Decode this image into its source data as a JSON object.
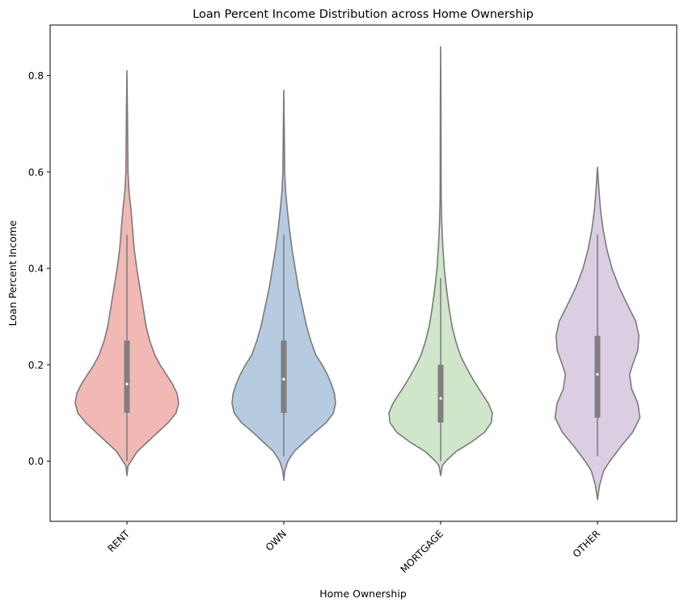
{
  "chart_data": {
    "type": "violin",
    "title": "Loan Percent Income Distribution across Home Ownership",
    "xlabel": "Home Ownership",
    "ylabel": "Loan Percent Income",
    "ylim": [
      -0.125,
      0.905
    ],
    "y_ticks": [
      0.0,
      0.2,
      0.4,
      0.6,
      0.8
    ],
    "y_tick_labels": [
      "0.0",
      "0.2",
      "0.4",
      "0.6",
      "0.8"
    ],
    "grid": false,
    "x_tick_rotation_deg": 45,
    "categories": [
      "RENT",
      "OWN",
      "MORTGAGE",
      "OTHER"
    ],
    "colors": {
      "RENT": "#f2b8b4",
      "OWN": "#b6cbe0",
      "MORTGAGE": "#d0e6cb",
      "OTHER": "#dbcee2",
      "outline": "#7a7a7a",
      "box": "#7f7f7f",
      "median": "#ffffff"
    },
    "violins": [
      {
        "category": "RENT",
        "min": -0.03,
        "max": 0.81,
        "q1": 0.1,
        "median": 0.16,
        "q3": 0.25,
        "whisker_low": 0.0,
        "whisker_high": 0.47,
        "density": [
          [
            -0.03,
            0.0
          ],
          [
            -0.01,
            0.02
          ],
          [
            0.0,
            0.08
          ],
          [
            0.02,
            0.2
          ],
          [
            0.04,
            0.4
          ],
          [
            0.06,
            0.6
          ],
          [
            0.08,
            0.8
          ],
          [
            0.1,
            0.95
          ],
          [
            0.12,
            1.0
          ],
          [
            0.14,
            0.97
          ],
          [
            0.16,
            0.88
          ],
          [
            0.18,
            0.76
          ],
          [
            0.2,
            0.64
          ],
          [
            0.22,
            0.54
          ],
          [
            0.25,
            0.44
          ],
          [
            0.28,
            0.37
          ],
          [
            0.32,
            0.31
          ],
          [
            0.36,
            0.25
          ],
          [
            0.4,
            0.19
          ],
          [
            0.44,
            0.14
          ],
          [
            0.48,
            0.11
          ],
          [
            0.52,
            0.08
          ],
          [
            0.56,
            0.04
          ],
          [
            0.6,
            0.02
          ],
          [
            0.7,
            0.012
          ],
          [
            0.81,
            0.0
          ]
        ]
      },
      {
        "category": "OWN",
        "min": -0.04,
        "max": 0.77,
        "q1": 0.1,
        "median": 0.17,
        "q3": 0.25,
        "whisker_low": 0.01,
        "whisker_high": 0.47,
        "density": [
          [
            -0.04,
            0.0
          ],
          [
            -0.02,
            0.02
          ],
          [
            0.0,
            0.08
          ],
          [
            0.02,
            0.2
          ],
          [
            0.04,
            0.4
          ],
          [
            0.06,
            0.6
          ],
          [
            0.08,
            0.82
          ],
          [
            0.1,
            0.96
          ],
          [
            0.12,
            1.0
          ],
          [
            0.14,
            0.98
          ],
          [
            0.16,
            0.92
          ],
          [
            0.18,
            0.84
          ],
          [
            0.2,
            0.74
          ],
          [
            0.22,
            0.62
          ],
          [
            0.25,
            0.52
          ],
          [
            0.28,
            0.44
          ],
          [
            0.32,
            0.36
          ],
          [
            0.36,
            0.28
          ],
          [
            0.4,
            0.22
          ],
          [
            0.44,
            0.16
          ],
          [
            0.48,
            0.11
          ],
          [
            0.52,
            0.07
          ],
          [
            0.56,
            0.035
          ],
          [
            0.6,
            0.018
          ],
          [
            0.68,
            0.01
          ],
          [
            0.77,
            0.0
          ]
        ]
      },
      {
        "category": "MORTGAGE",
        "min": -0.03,
        "max": 0.86,
        "q1": 0.08,
        "median": 0.13,
        "q3": 0.2,
        "whisker_low": 0.0,
        "whisker_high": 0.38,
        "density": [
          [
            -0.03,
            0.0
          ],
          [
            -0.01,
            0.03
          ],
          [
            0.0,
            0.1
          ],
          [
            0.02,
            0.3
          ],
          [
            0.04,
            0.6
          ],
          [
            0.06,
            0.85
          ],
          [
            0.08,
            0.98
          ],
          [
            0.1,
            1.0
          ],
          [
            0.12,
            0.92
          ],
          [
            0.14,
            0.8
          ],
          [
            0.16,
            0.68
          ],
          [
            0.18,
            0.57
          ],
          [
            0.2,
            0.47
          ],
          [
            0.22,
            0.38
          ],
          [
            0.25,
            0.29
          ],
          [
            0.28,
            0.22
          ],
          [
            0.32,
            0.16
          ],
          [
            0.36,
            0.11
          ],
          [
            0.4,
            0.07
          ],
          [
            0.45,
            0.04
          ],
          [
            0.5,
            0.02
          ],
          [
            0.55,
            0.01
          ],
          [
            0.65,
            0.008
          ],
          [
            0.75,
            0.006
          ],
          [
            0.86,
            0.0
          ]
        ]
      },
      {
        "category": "OTHER",
        "min": -0.08,
        "max": 0.61,
        "q1": 0.09,
        "median": 0.18,
        "q3": 0.26,
        "whisker_low": 0.01,
        "whisker_high": 0.47,
        "density": [
          [
            -0.08,
            0.0
          ],
          [
            -0.05,
            0.04
          ],
          [
            -0.02,
            0.12
          ],
          [
            0.0,
            0.24
          ],
          [
            0.03,
            0.45
          ],
          [
            0.06,
            0.68
          ],
          [
            0.09,
            0.82
          ],
          [
            0.12,
            0.78
          ],
          [
            0.15,
            0.66
          ],
          [
            0.18,
            0.62
          ],
          [
            0.2,
            0.68
          ],
          [
            0.23,
            0.78
          ],
          [
            0.26,
            0.8
          ],
          [
            0.29,
            0.74
          ],
          [
            0.32,
            0.6
          ],
          [
            0.36,
            0.42
          ],
          [
            0.4,
            0.28
          ],
          [
            0.44,
            0.18
          ],
          [
            0.48,
            0.11
          ],
          [
            0.52,
            0.06
          ],
          [
            0.56,
            0.03
          ],
          [
            0.61,
            0.0
          ]
        ]
      }
    ]
  }
}
